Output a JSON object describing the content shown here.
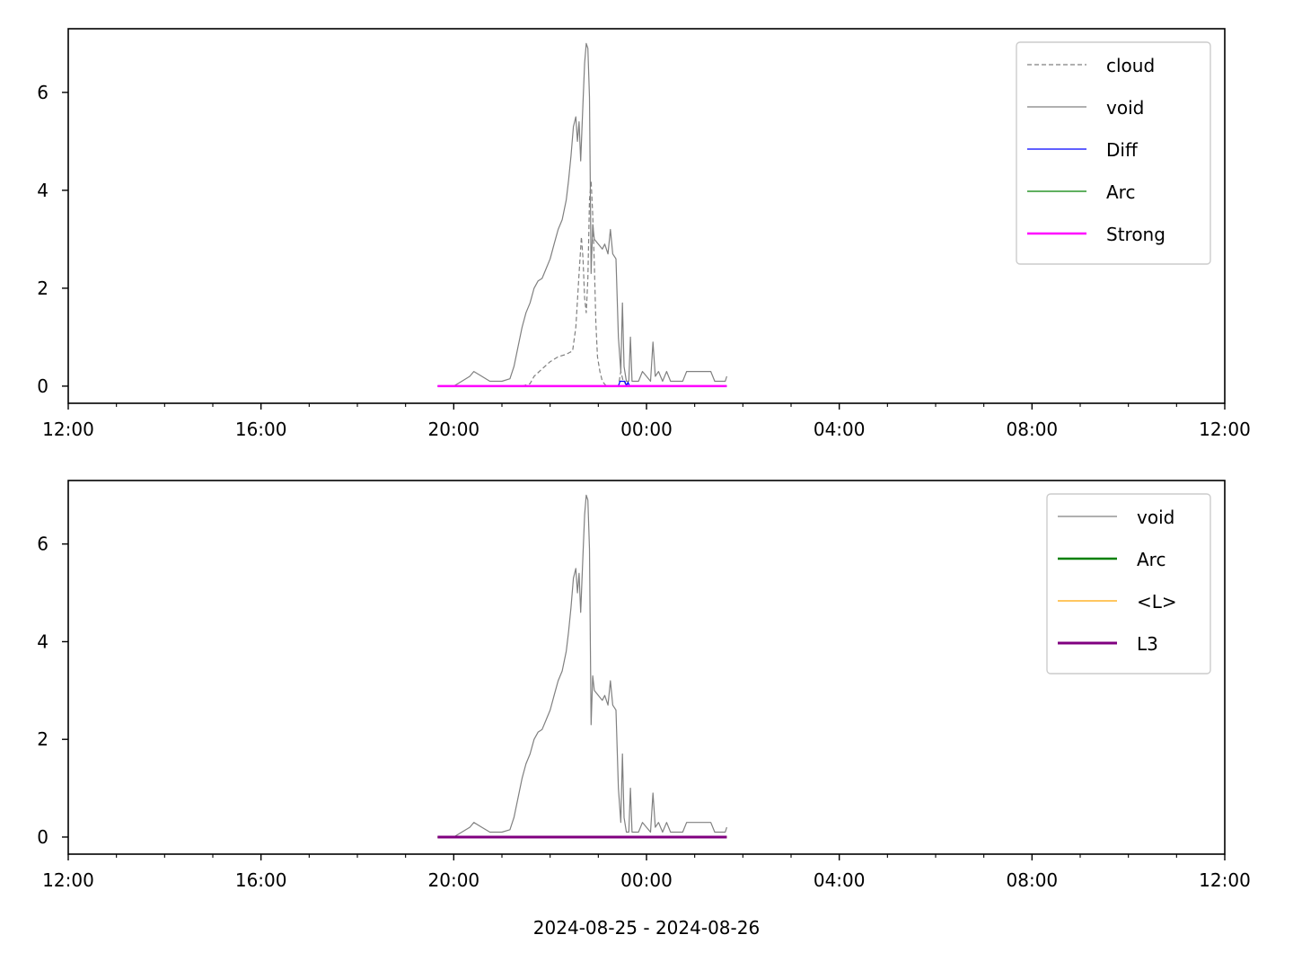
{
  "figure": {
    "xlabel": "2024-08-25 - 2024-08-26"
  },
  "chart_data": [
    {
      "type": "line",
      "x_axis": {
        "kind": "time",
        "range": [
          "2024-08-25 12:00",
          "2024-08-26 12:00"
        ],
        "ticks": [
          "12:00",
          "16:00",
          "20:00",
          "00:00",
          "04:00",
          "08:00",
          "12:00"
        ]
      },
      "y_axis": {
        "range": [
          -0.35,
          7.3
        ],
        "ticks": [
          0,
          2,
          4,
          6
        ]
      },
      "grid": false,
      "legend_position": "top-right",
      "series": [
        {
          "name": "cloud",
          "color": "#808080",
          "style": "dashed",
          "width": 1.2,
          "points": [
            [
              "2024-08-25 21:25",
              0.0
            ],
            [
              "2024-08-25 21:35",
              0.05
            ],
            [
              "2024-08-25 21:40",
              0.2
            ],
            [
              "2024-08-25 21:50",
              0.35
            ],
            [
              "2024-08-25 22:00",
              0.5
            ],
            [
              "2024-08-25 22:10",
              0.6
            ],
            [
              "2024-08-25 22:20",
              0.65
            ],
            [
              "2024-08-25 22:28",
              0.72
            ],
            [
              "2024-08-25 22:32",
              1.2
            ],
            [
              "2024-08-25 22:36",
              2.3
            ],
            [
              "2024-08-25 22:39",
              3.05
            ],
            [
              "2024-08-25 22:41",
              2.6
            ],
            [
              "2024-08-25 22:43",
              1.8
            ],
            [
              "2024-08-25 22:45",
              1.5
            ],
            [
              "2024-08-25 22:47",
              2.2
            ],
            [
              "2024-08-25 22:49",
              3.8
            ],
            [
              "2024-08-25 22:51",
              4.2
            ],
            [
              "2024-08-25 22:53",
              3.5
            ],
            [
              "2024-08-25 22:55",
              2.5
            ],
            [
              "2024-08-25 22:57",
              1.3
            ],
            [
              "2024-08-25 22:59",
              0.6
            ],
            [
              "2024-08-25 23:02",
              0.3
            ],
            [
              "2024-08-25 23:05",
              0.1
            ],
            [
              "2024-08-25 23:10",
              0.0
            ],
            [
              "2024-08-25 23:25",
              0.0
            ],
            [
              "2024-08-25 23:28",
              0.3
            ],
            [
              "2024-08-25 23:31",
              0.1
            ],
            [
              "2024-08-25 23:34",
              0.05
            ],
            [
              "2024-08-25 23:40",
              0.0
            ]
          ]
        },
        {
          "name": "void",
          "color": "#808080",
          "style": "solid",
          "width": 1.2,
          "points": [
            [
              "2024-08-25 19:40",
              0.0
            ],
            [
              "2024-08-25 20:00",
              0.0
            ],
            [
              "2024-08-25 20:10",
              0.1
            ],
            [
              "2024-08-25 20:20",
              0.2
            ],
            [
              "2024-08-25 20:25",
              0.3
            ],
            [
              "2024-08-25 20:35",
              0.2
            ],
            [
              "2024-08-25 20:45",
              0.1
            ],
            [
              "2024-08-25 21:00",
              0.1
            ],
            [
              "2024-08-25 21:10",
              0.15
            ],
            [
              "2024-08-25 21:15",
              0.4
            ],
            [
              "2024-08-25 21:20",
              0.8
            ],
            [
              "2024-08-25 21:25",
              1.2
            ],
            [
              "2024-08-25 21:30",
              1.5
            ],
            [
              "2024-08-25 21:35",
              1.7
            ],
            [
              "2024-08-25 21:40",
              2.0
            ],
            [
              "2024-08-25 21:45",
              2.15
            ],
            [
              "2024-08-25 21:50",
              2.2
            ],
            [
              "2024-08-25 21:55",
              2.4
            ],
            [
              "2024-08-25 22:00",
              2.6
            ],
            [
              "2024-08-25 22:05",
              2.9
            ],
            [
              "2024-08-25 22:10",
              3.2
            ],
            [
              "2024-08-25 22:15",
              3.4
            ],
            [
              "2024-08-25 22:20",
              3.8
            ],
            [
              "2024-08-25 22:23",
              4.2
            ],
            [
              "2024-08-25 22:26",
              4.7
            ],
            [
              "2024-08-25 22:29",
              5.3
            ],
            [
              "2024-08-25 22:32",
              5.5
            ],
            [
              "2024-08-25 22:34",
              5.0
            ],
            [
              "2024-08-25 22:36",
              5.4
            ],
            [
              "2024-08-25 22:38",
              4.6
            ],
            [
              "2024-08-25 22:41",
              5.8
            ],
            [
              "2024-08-25 22:43",
              6.6
            ],
            [
              "2024-08-25 22:45",
              7.0
            ],
            [
              "2024-08-25 22:47",
              6.9
            ],
            [
              "2024-08-25 22:49",
              5.9
            ],
            [
              "2024-08-25 22:51",
              2.3
            ],
            [
              "2024-08-25 22:53",
              3.3
            ],
            [
              "2024-08-25 22:55",
              3.0
            ],
            [
              "2024-08-25 23:00",
              2.9
            ],
            [
              "2024-08-25 23:05",
              2.8
            ],
            [
              "2024-08-25 23:08",
              2.9
            ],
            [
              "2024-08-25 23:12",
              2.7
            ],
            [
              "2024-08-25 23:15",
              3.2
            ],
            [
              "2024-08-25 23:18",
              2.7
            ],
            [
              "2024-08-25 23:22",
              2.6
            ],
            [
              "2024-08-25 23:25",
              1.0
            ],
            [
              "2024-08-25 23:28",
              0.3
            ],
            [
              "2024-08-25 23:30",
              1.7
            ],
            [
              "2024-08-25 23:32",
              0.4
            ],
            [
              "2024-08-25 23:35",
              0.1
            ],
            [
              "2024-08-25 23:38",
              0.1
            ],
            [
              "2024-08-25 23:40",
              1.0
            ],
            [
              "2024-08-25 23:42",
              0.1
            ],
            [
              "2024-08-25 23:50",
              0.1
            ],
            [
              "2024-08-25 23:55",
              0.3
            ],
            [
              "2024-08-26 00:00",
              0.2
            ],
            [
              "2024-08-26 00:05",
              0.1
            ],
            [
              "2024-08-26 00:08",
              0.9
            ],
            [
              "2024-08-26 00:11",
              0.2
            ],
            [
              "2024-08-26 00:15",
              0.3
            ],
            [
              "2024-08-26 00:20",
              0.1
            ],
            [
              "2024-08-26 00:25",
              0.3
            ],
            [
              "2024-08-26 00:30",
              0.1
            ],
            [
              "2024-08-26 00:45",
              0.1
            ],
            [
              "2024-08-26 00:50",
              0.3
            ],
            [
              "2024-08-26 01:20",
              0.3
            ],
            [
              "2024-08-26 01:25",
              0.1
            ],
            [
              "2024-08-26 01:38",
              0.1
            ],
            [
              "2024-08-26 01:40",
              0.2
            ]
          ]
        },
        {
          "name": "Diff",
          "color": "#0000ff",
          "style": "solid",
          "width": 1.2,
          "points": [
            [
              "2024-08-25 19:40",
              0.0
            ],
            [
              "2024-08-25 23:25",
              0.0
            ],
            [
              "2024-08-25 23:27",
              0.1
            ],
            [
              "2024-08-25 23:33",
              0.1
            ],
            [
              "2024-08-25 23:35",
              0.0
            ],
            [
              "2024-08-25 23:37",
              0.08
            ],
            [
              "2024-08-25 23:39",
              0.0
            ],
            [
              "2024-08-26 01:40",
              0.0
            ]
          ]
        },
        {
          "name": "Arc",
          "color": "#008000",
          "style": "solid",
          "width": 1.2,
          "points": [
            [
              "2024-08-25 19:40",
              0.0
            ],
            [
              "2024-08-26 01:40",
              0.0
            ]
          ]
        },
        {
          "name": "Strong",
          "color": "#ff00ff",
          "style": "solid",
          "width": 2.5,
          "points": [
            [
              "2024-08-25 19:40",
              0.0
            ],
            [
              "2024-08-26 01:40",
              0.0
            ]
          ]
        }
      ]
    },
    {
      "type": "line",
      "x_axis": {
        "kind": "time",
        "range": [
          "2024-08-25 12:00",
          "2024-08-26 12:00"
        ],
        "ticks": [
          "12:00",
          "16:00",
          "20:00",
          "00:00",
          "04:00",
          "08:00",
          "12:00"
        ]
      },
      "y_axis": {
        "range": [
          -0.35,
          7.3
        ],
        "ticks": [
          0,
          2,
          4,
          6
        ]
      },
      "grid": false,
      "legend_position": "top-right",
      "series": [
        {
          "name": "void",
          "color": "#808080",
          "style": "solid",
          "width": 1.2,
          "points": [
            [
              "2024-08-25 19:40",
              0.0
            ],
            [
              "2024-08-25 20:00",
              0.0
            ],
            [
              "2024-08-25 20:10",
              0.1
            ],
            [
              "2024-08-25 20:20",
              0.2
            ],
            [
              "2024-08-25 20:25",
              0.3
            ],
            [
              "2024-08-25 20:35",
              0.2
            ],
            [
              "2024-08-25 20:45",
              0.1
            ],
            [
              "2024-08-25 21:00",
              0.1
            ],
            [
              "2024-08-25 21:10",
              0.15
            ],
            [
              "2024-08-25 21:15",
              0.4
            ],
            [
              "2024-08-25 21:20",
              0.8
            ],
            [
              "2024-08-25 21:25",
              1.2
            ],
            [
              "2024-08-25 21:30",
              1.5
            ],
            [
              "2024-08-25 21:35",
              1.7
            ],
            [
              "2024-08-25 21:40",
              2.0
            ],
            [
              "2024-08-25 21:45",
              2.15
            ],
            [
              "2024-08-25 21:50",
              2.2
            ],
            [
              "2024-08-25 21:55",
              2.4
            ],
            [
              "2024-08-25 22:00",
              2.6
            ],
            [
              "2024-08-25 22:05",
              2.9
            ],
            [
              "2024-08-25 22:10",
              3.2
            ],
            [
              "2024-08-25 22:15",
              3.4
            ],
            [
              "2024-08-25 22:20",
              3.8
            ],
            [
              "2024-08-25 22:23",
              4.2
            ],
            [
              "2024-08-25 22:26",
              4.7
            ],
            [
              "2024-08-25 22:29",
              5.3
            ],
            [
              "2024-08-25 22:32",
              5.5
            ],
            [
              "2024-08-25 22:34",
              5.0
            ],
            [
              "2024-08-25 22:36",
              5.4
            ],
            [
              "2024-08-25 22:38",
              4.6
            ],
            [
              "2024-08-25 22:41",
              5.8
            ],
            [
              "2024-08-25 22:43",
              6.6
            ],
            [
              "2024-08-25 22:45",
              7.0
            ],
            [
              "2024-08-25 22:47",
              6.9
            ],
            [
              "2024-08-25 22:49",
              5.9
            ],
            [
              "2024-08-25 22:51",
              2.3
            ],
            [
              "2024-08-25 22:53",
              3.3
            ],
            [
              "2024-08-25 22:55",
              3.0
            ],
            [
              "2024-08-25 23:00",
              2.9
            ],
            [
              "2024-08-25 23:05",
              2.8
            ],
            [
              "2024-08-25 23:08",
              2.9
            ],
            [
              "2024-08-25 23:12",
              2.7
            ],
            [
              "2024-08-25 23:15",
              3.2
            ],
            [
              "2024-08-25 23:18",
              2.7
            ],
            [
              "2024-08-25 23:22",
              2.6
            ],
            [
              "2024-08-25 23:25",
              1.0
            ],
            [
              "2024-08-25 23:28",
              0.3
            ],
            [
              "2024-08-25 23:30",
              1.7
            ],
            [
              "2024-08-25 23:32",
              0.4
            ],
            [
              "2024-08-25 23:35",
              0.1
            ],
            [
              "2024-08-25 23:38",
              0.1
            ],
            [
              "2024-08-25 23:40",
              1.0
            ],
            [
              "2024-08-25 23:42",
              0.1
            ],
            [
              "2024-08-25 23:50",
              0.1
            ],
            [
              "2024-08-25 23:55",
              0.3
            ],
            [
              "2024-08-26 00:00",
              0.2
            ],
            [
              "2024-08-26 00:05",
              0.1
            ],
            [
              "2024-08-26 00:08",
              0.9
            ],
            [
              "2024-08-26 00:11",
              0.2
            ],
            [
              "2024-08-26 00:15",
              0.3
            ],
            [
              "2024-08-26 00:20",
              0.1
            ],
            [
              "2024-08-26 00:25",
              0.3
            ],
            [
              "2024-08-26 00:30",
              0.1
            ],
            [
              "2024-08-26 00:45",
              0.1
            ],
            [
              "2024-08-26 00:50",
              0.3
            ],
            [
              "2024-08-26 01:20",
              0.3
            ],
            [
              "2024-08-26 01:25",
              0.1
            ],
            [
              "2024-08-26 01:38",
              0.1
            ],
            [
              "2024-08-26 01:40",
              0.2
            ]
          ]
        },
        {
          "name": "Arc",
          "color": "#008000",
          "style": "solid",
          "width": 2.5,
          "points": [
            [
              "2024-08-25 19:40",
              0.0
            ],
            [
              "2024-08-26 01:40",
              0.0
            ]
          ]
        },
        {
          "name": "<L>",
          "color": "#ffa500",
          "style": "solid",
          "width": 1.2,
          "points": [
            [
              "2024-08-25 19:40",
              0.0
            ],
            [
              "2024-08-26 01:40",
              0.0
            ]
          ]
        },
        {
          "name": "L3",
          "color": "#800080",
          "style": "solid",
          "width": 3.0,
          "points": [
            [
              "2024-08-25 19:40",
              0.0
            ],
            [
              "2024-08-26 01:40",
              0.0
            ]
          ]
        }
      ]
    }
  ]
}
